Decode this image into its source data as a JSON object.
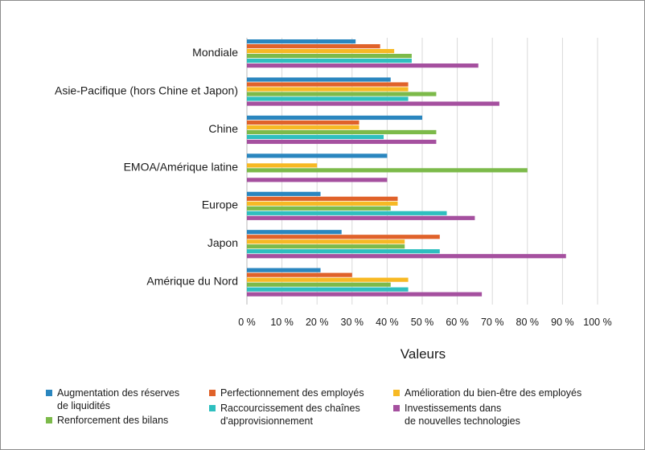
{
  "chart_data": {
    "type": "bar",
    "orientation": "horizontal",
    "title": "",
    "xlabel": "Valeurs",
    "ylabel": "",
    "xlim": [
      0,
      100
    ],
    "x_ticks": [
      0,
      10,
      20,
      30,
      40,
      50,
      60,
      70,
      80,
      90,
      100
    ],
    "x_tick_labels": [
      "0 %",
      "10 %",
      "20 %",
      "30 %",
      "40 %",
      "50 %",
      "60 %",
      "70 %",
      "80 %",
      "90 %",
      "100 %"
    ],
    "grid": "vertical",
    "legend_position": "bottom",
    "categories": [
      "Mondiale",
      "Asie-Pacifique (hors Chine et Japon)",
      "Chine",
      "EMOA/Amérique latine",
      "Europe",
      "Japon",
      "Amérique du Nord"
    ],
    "series": [
      {
        "name": "Augmentation des réserves de liquidités",
        "legend_lines": [
          "Augmentation des réserves",
          "de liquidités"
        ],
        "color": "#2a86bf",
        "values": [
          31,
          41,
          50,
          40,
          21,
          27,
          21
        ]
      },
      {
        "name": "Perfectionnement des employés",
        "legend_lines": [
          "Perfectionnement des employés"
        ],
        "color": "#e0622a",
        "values": [
          38,
          46,
          32,
          null,
          43,
          55,
          30
        ]
      },
      {
        "name": "Amélioration du bien-être des employés",
        "legend_lines": [
          "Amélioration du bien-être des employés"
        ],
        "color": "#f7b924",
        "values": [
          42,
          46,
          32,
          20,
          43,
          45,
          46
        ]
      },
      {
        "name": "Renforcement des bilans",
        "legend_lines": [
          "Renforcement des bilans"
        ],
        "color": "#7cba4a",
        "values": [
          47,
          54,
          54,
          80,
          41,
          45,
          41
        ]
      },
      {
        "name": "Raccourcissement des chaînes d'approvisionnement",
        "legend_lines": [
          "Raccourcissement des chaînes",
          "d'approvisionnement"
        ],
        "color": "#2ebfbf",
        "values": [
          47,
          46,
          39,
          null,
          57,
          55,
          46
        ]
      },
      {
        "name": "Investissements dans de nouvelles technologies",
        "legend_lines": [
          "Investissements dans",
          "de nouvelles technologies"
        ],
        "color": "#a5509f",
        "values": [
          66,
          72,
          54,
          40,
          65,
          91,
          67
        ]
      }
    ]
  }
}
